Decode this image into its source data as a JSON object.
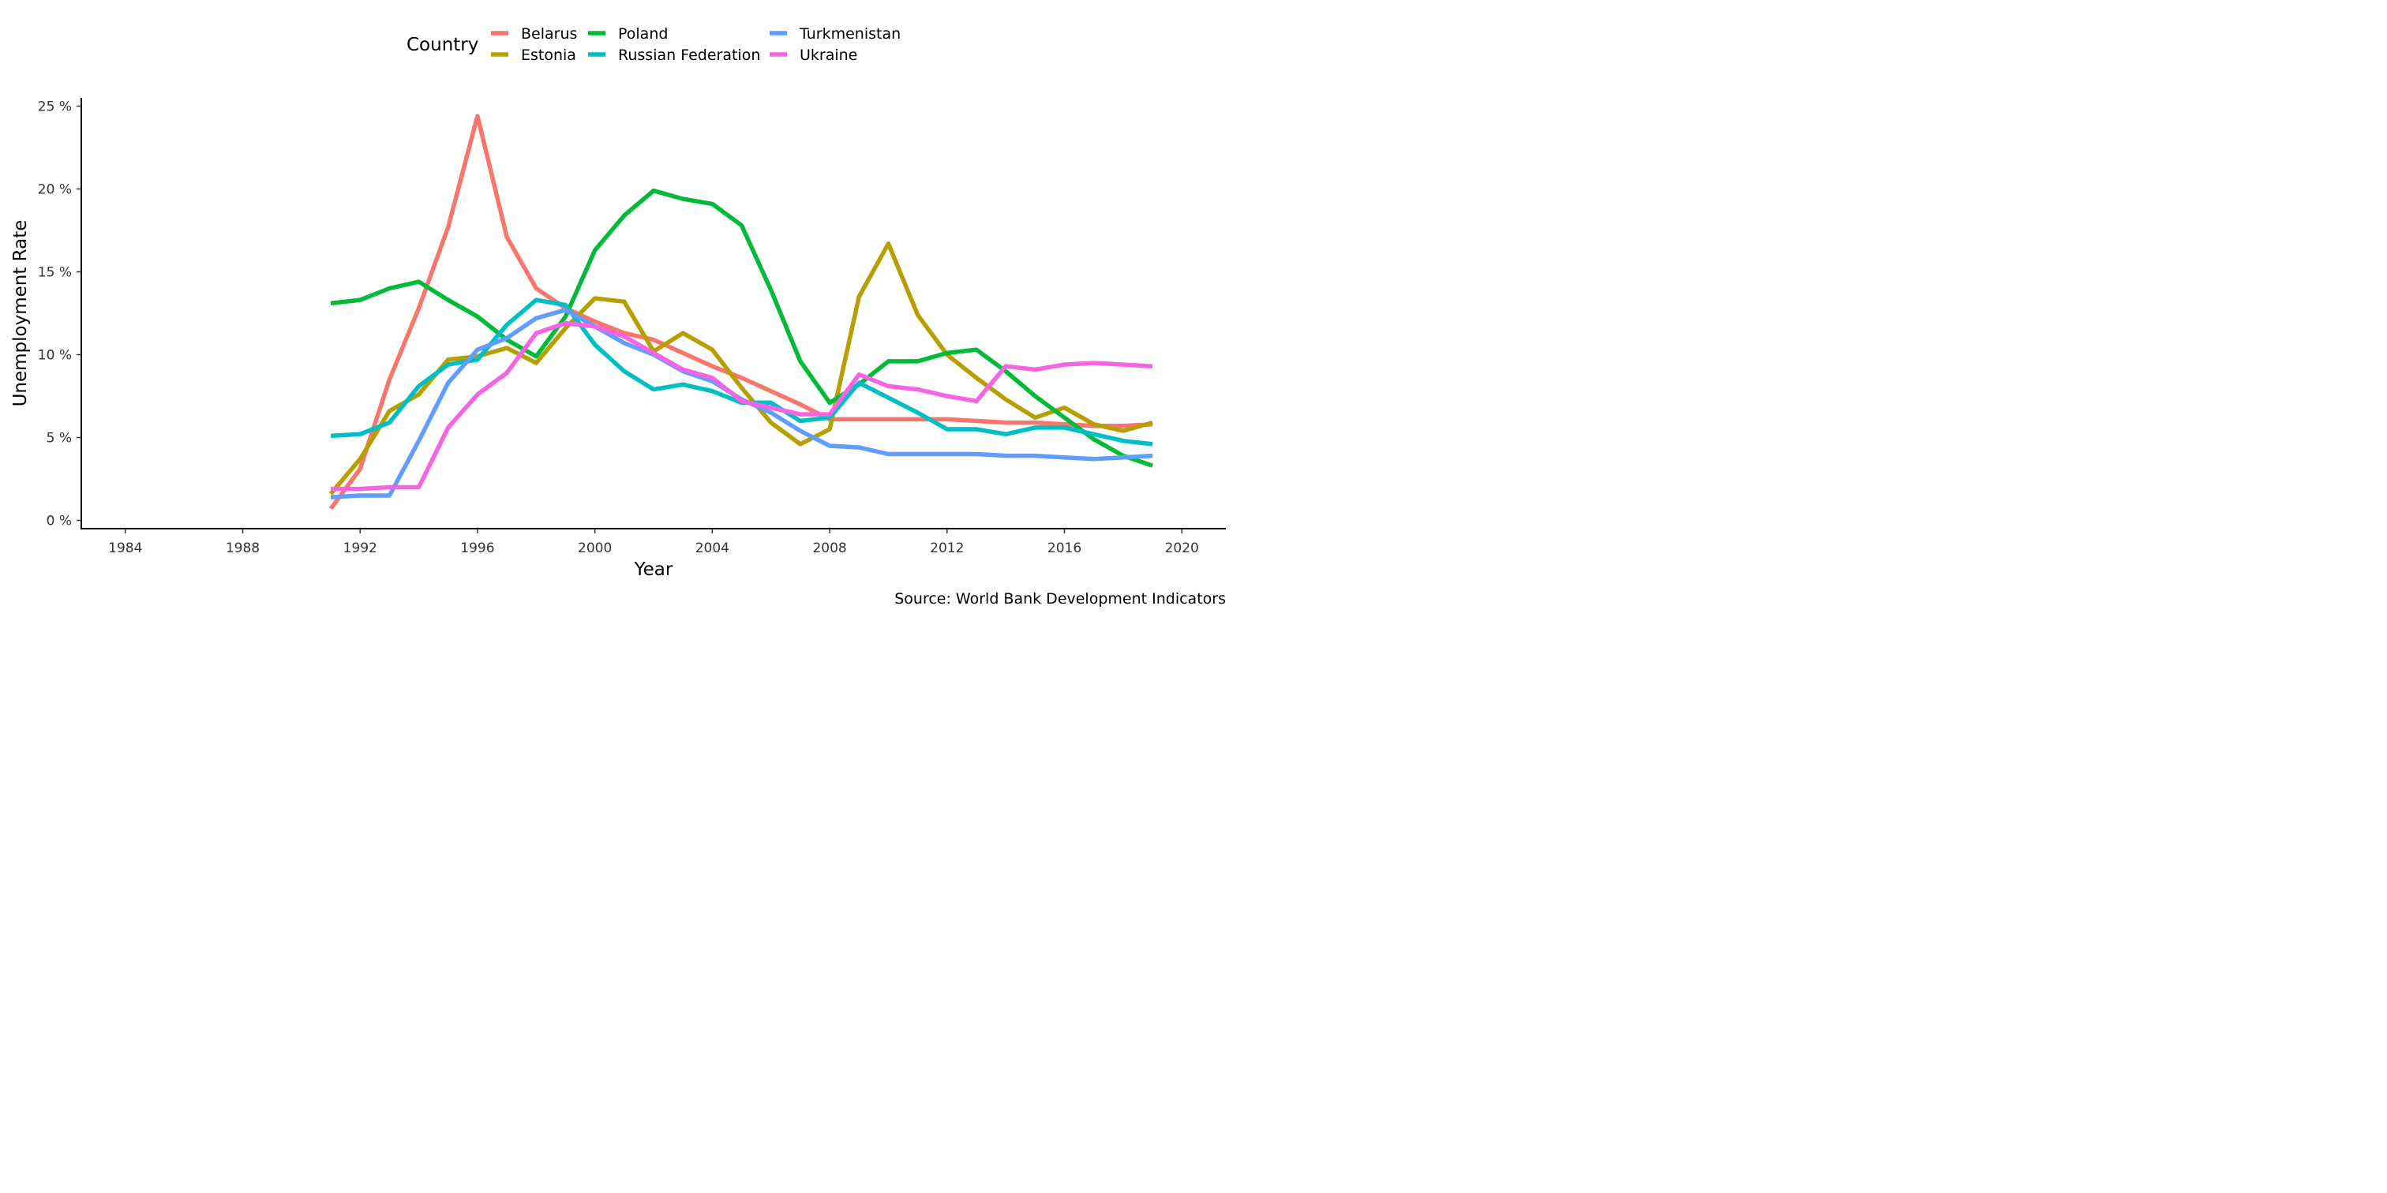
{
  "chart_data": {
    "type": "line",
    "xlabel": "Year",
    "ylabel": "Unemployment Rate",
    "caption": "Source: World Bank Development Indicators",
    "legend_title": "Country",
    "legend_position": "top",
    "grid": false,
    "xlim": [
      1982.5,
      2021.5
    ],
    "ylim": [
      -0.5,
      25.5
    ],
    "x_ticks": [
      1984,
      1988,
      1992,
      1996,
      2000,
      2004,
      2008,
      2012,
      2016,
      2020
    ],
    "x_tick_labels": [
      "1984",
      "1988",
      "1992",
      "1996",
      "2000",
      "2004",
      "2008",
      "2012",
      "2016",
      "2020"
    ],
    "y_ticks": [
      0,
      5,
      10,
      15,
      20,
      25
    ],
    "y_tick_labels": [
      "0 %",
      "5 %",
      "10 %",
      "15 %",
      "20 %",
      "25 %"
    ],
    "x": [
      1991,
      1992,
      1993,
      1994,
      1995,
      1996,
      1997,
      1998,
      1999,
      2000,
      2001,
      2002,
      2003,
      2004,
      2005,
      2006,
      2007,
      2008,
      2009,
      2010,
      2011,
      2012,
      2013,
      2014,
      2015,
      2016,
      2017,
      2018,
      2019
    ],
    "series": [
      {
        "name": "Belarus",
        "color": "#F8766D",
        "values": [
          0.7,
          3.1,
          8.5,
          12.8,
          17.7,
          24.4,
          17.1,
          14.0,
          12.8,
          12.0,
          11.3,
          10.9,
          10.1,
          9.3,
          8.6,
          7.8,
          7.0,
          6.1,
          6.1,
          6.1,
          6.1,
          6.1,
          6.0,
          5.9,
          5.9,
          5.8,
          5.7,
          5.7,
          5.8
        ]
      },
      {
        "name": "Estonia",
        "color": "#B79F00",
        "values": [
          1.6,
          3.7,
          6.6,
          7.6,
          9.7,
          9.9,
          10.4,
          9.5,
          11.6,
          13.4,
          13.2,
          10.2,
          11.3,
          10.3,
          8.0,
          5.9,
          4.6,
          5.5,
          13.5,
          16.7,
          12.4,
          10.0,
          8.6,
          7.3,
          6.2,
          6.8,
          5.8,
          5.4,
          5.9
        ]
      },
      {
        "name": "Poland",
        "color": "#00BA38",
        "values": [
          13.1,
          13.3,
          14.0,
          14.4,
          13.3,
          12.3,
          10.9,
          9.9,
          12.3,
          16.3,
          18.4,
          19.9,
          19.4,
          19.1,
          17.8,
          13.9,
          9.6,
          7.1,
          8.2,
          9.6,
          9.6,
          10.1,
          10.3,
          9.0,
          7.5,
          6.2,
          4.9,
          3.9,
          3.3
        ]
      },
      {
        "name": "Russian Federation",
        "color": "#00BFC4",
        "values": [
          5.1,
          5.2,
          5.9,
          8.1,
          9.4,
          9.7,
          11.8,
          13.3,
          13.0,
          10.6,
          9.0,
          7.9,
          8.2,
          7.8,
          7.1,
          7.1,
          6.0,
          6.2,
          8.3,
          7.4,
          6.5,
          5.5,
          5.5,
          5.2,
          5.6,
          5.6,
          5.2,
          4.8,
          4.6
        ]
      },
      {
        "name": "Turkmenistan",
        "color": "#619CFF",
        "values": [
          1.4,
          1.5,
          1.5,
          4.8,
          8.3,
          10.3,
          11.0,
          12.2,
          12.7,
          11.7,
          10.7,
          10.0,
          9.0,
          8.4,
          7.3,
          6.5,
          5.4,
          4.5,
          4.4,
          4.0,
          4.0,
          4.0,
          4.0,
          3.9,
          3.9,
          3.8,
          3.7,
          3.8,
          3.9
        ]
      },
      {
        "name": "Ukraine",
        "color": "#F564E3",
        "values": [
          1.9,
          1.9,
          2.0,
          2.0,
          5.6,
          7.6,
          8.9,
          11.3,
          11.9,
          11.7,
          11.1,
          10.1,
          9.1,
          8.6,
          7.2,
          6.8,
          6.4,
          6.4,
          8.8,
          8.1,
          7.9,
          7.5,
          7.2,
          9.3,
          9.1,
          9.4,
          9.5,
          9.4,
          9.3
        ]
      }
    ]
  }
}
